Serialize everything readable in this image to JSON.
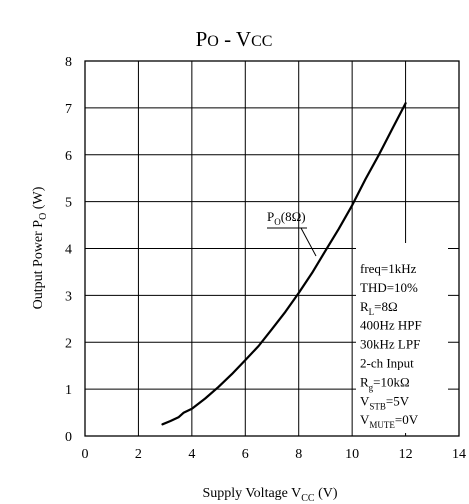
{
  "chart_data": {
    "type": "line",
    "title": "Po - Vcc",
    "xlabel": "Supply Voltage V_CC (V)",
    "ylabel": "Output Power P_O (W)",
    "xlim": [
      0,
      14
    ],
    "ylim": [
      0,
      8
    ],
    "x_ticks": [
      0,
      2,
      4,
      6,
      8,
      10,
      12,
      14
    ],
    "y_ticks": [
      0,
      1,
      2,
      3,
      4,
      5,
      6,
      7,
      8
    ],
    "grid": true,
    "series": [
      {
        "name": "P_O(8Ω)",
        "x": [
          2.9,
          3.2,
          3.5,
          3.7,
          4.0,
          4.5,
          5.0,
          5.5,
          6.0,
          6.5,
          7.0,
          7.5,
          8.0,
          8.5,
          9.0,
          9.5,
          10.0,
          10.5,
          11.0,
          11.5,
          12.0
        ],
        "y": [
          0.25,
          0.32,
          0.4,
          0.5,
          0.58,
          0.8,
          1.05,
          1.32,
          1.62,
          1.92,
          2.28,
          2.65,
          3.05,
          3.48,
          3.95,
          4.42,
          4.92,
          5.48,
          6.0,
          6.55,
          7.1
        ]
      }
    ],
    "series_label": {
      "main": "P",
      "sub": "O",
      "rest": "(8Ω)"
    },
    "conditions": [
      {
        "main": "freq=1kHz"
      },
      {
        "main": "THD=10%"
      },
      {
        "main": "R",
        "sub": "L",
        "rest": "=8Ω"
      },
      {
        "main": "400Hz HPF"
      },
      {
        "main": "30kHz LPF"
      },
      {
        "main": "2-ch Input"
      },
      {
        "main": "R",
        "sub": "g",
        "rest": "=10kΩ"
      },
      {
        "main": "V",
        "sub": "STB",
        "rest": "=5V"
      },
      {
        "main": "V",
        "sub": "MUTE",
        "rest": "=0V"
      }
    ]
  }
}
